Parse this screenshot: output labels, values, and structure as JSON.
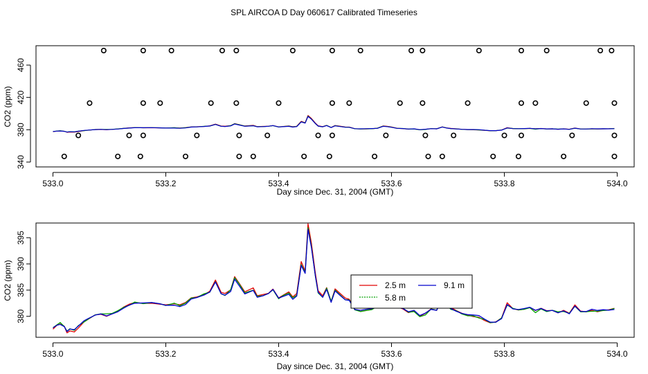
{
  "page_title": "SPL AIRCOA D  Day 060617  Calibrated Timeseries",
  "chart_data": [
    {
      "type": "scatter+line",
      "xlabel": "Day since Dec. 31, 2004 (GMT)",
      "ylabel": "CO2 (ppm)",
      "xlim": [
        532.97,
        534.03
      ],
      "ylim": [
        334,
        484
      ],
      "xticks": [
        533.0,
        533.2,
        533.4,
        533.6,
        533.8,
        534.0
      ],
      "xtick_labels": [
        "533.0",
        "533.2",
        "533.4",
        "533.6",
        "533.8",
        "534.0"
      ],
      "yticks": [
        340,
        380,
        420,
        460
      ],
      "ytick_labels": [
        "340",
        "380",
        "420",
        "460"
      ],
      "calibration_points": {
        "marker": "open-circle",
        "points": [
          [
            533.09,
            478
          ],
          [
            533.16,
            478
          ],
          [
            533.21,
            478
          ],
          [
            533.3,
            478
          ],
          [
            533.325,
            478
          ],
          [
            533.425,
            478
          ],
          [
            533.495,
            478
          ],
          [
            533.545,
            478
          ],
          [
            533.635,
            478
          ],
          [
            533.655,
            478
          ],
          [
            533.755,
            478
          ],
          [
            533.83,
            478
          ],
          [
            533.875,
            478
          ],
          [
            533.97,
            478
          ],
          [
            533.99,
            478
          ],
          [
            533.065,
            413
          ],
          [
            533.16,
            413
          ],
          [
            533.19,
            413
          ],
          [
            533.28,
            413
          ],
          [
            533.325,
            413
          ],
          [
            533.4,
            413
          ],
          [
            533.495,
            413
          ],
          [
            533.525,
            413
          ],
          [
            533.615,
            413
          ],
          [
            533.655,
            413
          ],
          [
            533.735,
            413
          ],
          [
            533.83,
            413
          ],
          [
            533.855,
            413
          ],
          [
            533.945,
            413
          ],
          [
            533.995,
            413
          ],
          [
            533.045,
            373
          ],
          [
            533.135,
            373
          ],
          [
            533.16,
            373
          ],
          [
            533.255,
            373
          ],
          [
            533.33,
            373
          ],
          [
            533.38,
            373
          ],
          [
            533.47,
            373
          ],
          [
            533.495,
            373
          ],
          [
            533.59,
            373
          ],
          [
            533.66,
            373
          ],
          [
            533.71,
            373
          ],
          [
            533.8,
            373
          ],
          [
            533.83,
            373
          ],
          [
            533.92,
            373
          ],
          [
            533.995,
            373
          ],
          [
            533.02,
            347
          ],
          [
            533.115,
            347
          ],
          [
            533.155,
            347
          ],
          [
            533.235,
            347
          ],
          [
            533.33,
            347
          ],
          [
            533.355,
            347
          ],
          [
            533.445,
            347
          ],
          [
            533.49,
            347
          ],
          [
            533.57,
            347
          ],
          [
            533.665,
            347
          ],
          [
            533.69,
            347
          ],
          [
            533.78,
            347
          ],
          [
            533.825,
            347
          ],
          [
            533.905,
            347
          ],
          [
            533.995,
            347
          ]
        ]
      },
      "series": [
        {
          "name": "2.5 m",
          "color": "#e00000"
        },
        {
          "name": "5.8 m",
          "color": "#00a000"
        },
        {
          "name": "9.1 m",
          "color": "#0000cc"
        }
      ]
    },
    {
      "type": "line",
      "xlabel": "Day since Dec. 31, 2004 (GMT)",
      "ylabel": "CO2 (ppm)",
      "xlim": [
        532.97,
        534.03
      ],
      "ylim": [
        376.0,
        397.8
      ],
      "xticks": [
        533.0,
        533.2,
        533.4,
        533.6,
        533.8,
        534.0
      ],
      "xtick_labels": [
        "533.0",
        "533.2",
        "533.4",
        "533.6",
        "533.8",
        "534.0"
      ],
      "yticks": [
        380,
        385,
        390,
        395
      ],
      "ytick_labels": [
        "380",
        "385",
        "390",
        "395"
      ],
      "legend_position": "center",
      "series": [
        {
          "name": "2.5 m",
          "color": "#e00000"
        },
        {
          "name": "5.8 m",
          "color": "#00a000"
        },
        {
          "name": "9.1 m",
          "color": "#0000cc"
        }
      ],
      "base_profile": [
        [
          533.0,
          377.8
        ],
        [
          533.007,
          378.4
        ],
        [
          533.013,
          378.6
        ],
        [
          533.02,
          378.2
        ],
        [
          533.025,
          377.2
        ],
        [
          533.03,
          377.6
        ],
        [
          533.038,
          377.4
        ],
        [
          533.045,
          378.0
        ],
        [
          533.055,
          379.0
        ],
        [
          533.065,
          379.6
        ],
        [
          533.075,
          380.2
        ],
        [
          533.085,
          380.5
        ],
        [
          533.095,
          380.2
        ],
        [
          533.105,
          380.6
        ],
        [
          533.115,
          381.0
        ],
        [
          533.125,
          381.6
        ],
        [
          533.135,
          382.1
        ],
        [
          533.145,
          382.4
        ],
        [
          533.16,
          382.4
        ],
        [
          533.175,
          382.5
        ],
        [
          533.19,
          382.3
        ],
        [
          533.2,
          382.1
        ],
        [
          533.215,
          382.2
        ],
        [
          533.225,
          382.0
        ],
        [
          533.235,
          382.4
        ],
        [
          533.245,
          383.4
        ],
        [
          533.255,
          383.6
        ],
        [
          533.268,
          384.0
        ],
        [
          533.278,
          384.5
        ],
        [
          533.288,
          386.4
        ],
        [
          533.298,
          384.2
        ],
        [
          533.305,
          384.0
        ],
        [
          533.315,
          384.8
        ],
        [
          533.322,
          387.2
        ],
        [
          533.33,
          386.0
        ],
        [
          533.34,
          384.4
        ],
        [
          533.355,
          385.0
        ],
        [
          533.362,
          383.6
        ],
        [
          533.372,
          383.8
        ],
        [
          533.382,
          384.2
        ],
        [
          533.39,
          385.0
        ],
        [
          533.4,
          383.4
        ],
        [
          533.408,
          383.8
        ],
        [
          533.418,
          384.3
        ],
        [
          533.425,
          383.4
        ],
        [
          533.432,
          384.0
        ],
        [
          533.44,
          389.8
        ],
        [
          533.447,
          388.2
        ],
        [
          533.452,
          396.5
        ],
        [
          533.458,
          393.0
        ],
        [
          533.465,
          387.6
        ],
        [
          533.47,
          384.5
        ],
        [
          533.478,
          383.6
        ],
        [
          533.485,
          385.2
        ],
        [
          533.493,
          382.8
        ],
        [
          533.5,
          385.0
        ],
        [
          533.51,
          384.0
        ],
        [
          533.518,
          383.2
        ],
        [
          533.525,
          383.0
        ],
        [
          533.535,
          381.2
        ],
        [
          533.545,
          381.0
        ],
        [
          533.555,
          381.2
        ],
        [
          533.565,
          381.4
        ],
        [
          533.575,
          381.8
        ],
        [
          533.585,
          384.3
        ],
        [
          533.592,
          384.0
        ],
        [
          533.6,
          383.2
        ],
        [
          533.61,
          381.8
        ],
        [
          533.62,
          381.5
        ],
        [
          533.63,
          380.8
        ],
        [
          533.64,
          381.0
        ],
        [
          533.65,
          380.0
        ],
        [
          533.66,
          380.5
        ],
        [
          533.67,
          381.3
        ],
        [
          533.68,
          381.2
        ],
        [
          533.69,
          383.5
        ],
        [
          533.698,
          382.2
        ],
        [
          533.705,
          381.6
        ],
        [
          533.715,
          381.0
        ],
        [
          533.725,
          380.5
        ],
        [
          533.735,
          380.2
        ],
        [
          533.745,
          380.1
        ],
        [
          533.755,
          380.0
        ],
        [
          533.765,
          379.4
        ],
        [
          533.775,
          378.9
        ],
        [
          533.785,
          379.0
        ],
        [
          533.795,
          379.7
        ],
        [
          533.805,
          382.4
        ],
        [
          533.815,
          381.5
        ],
        [
          533.825,
          381.3
        ],
        [
          533.835,
          381.4
        ],
        [
          533.845,
          381.6
        ],
        [
          533.855,
          381.0
        ],
        [
          533.865,
          381.4
        ],
        [
          533.875,
          381.0
        ],
        [
          533.885,
          381.2
        ],
        [
          533.895,
          380.8
        ],
        [
          533.905,
          381.2
        ],
        [
          533.915,
          380.6
        ],
        [
          533.925,
          382.0
        ],
        [
          533.935,
          380.9
        ],
        [
          533.945,
          380.8
        ],
        [
          533.955,
          381.2
        ],
        [
          533.965,
          381.0
        ],
        [
          533.975,
          381.2
        ],
        [
          533.985,
          381.2
        ],
        [
          533.995,
          381.4
        ]
      ]
    }
  ]
}
